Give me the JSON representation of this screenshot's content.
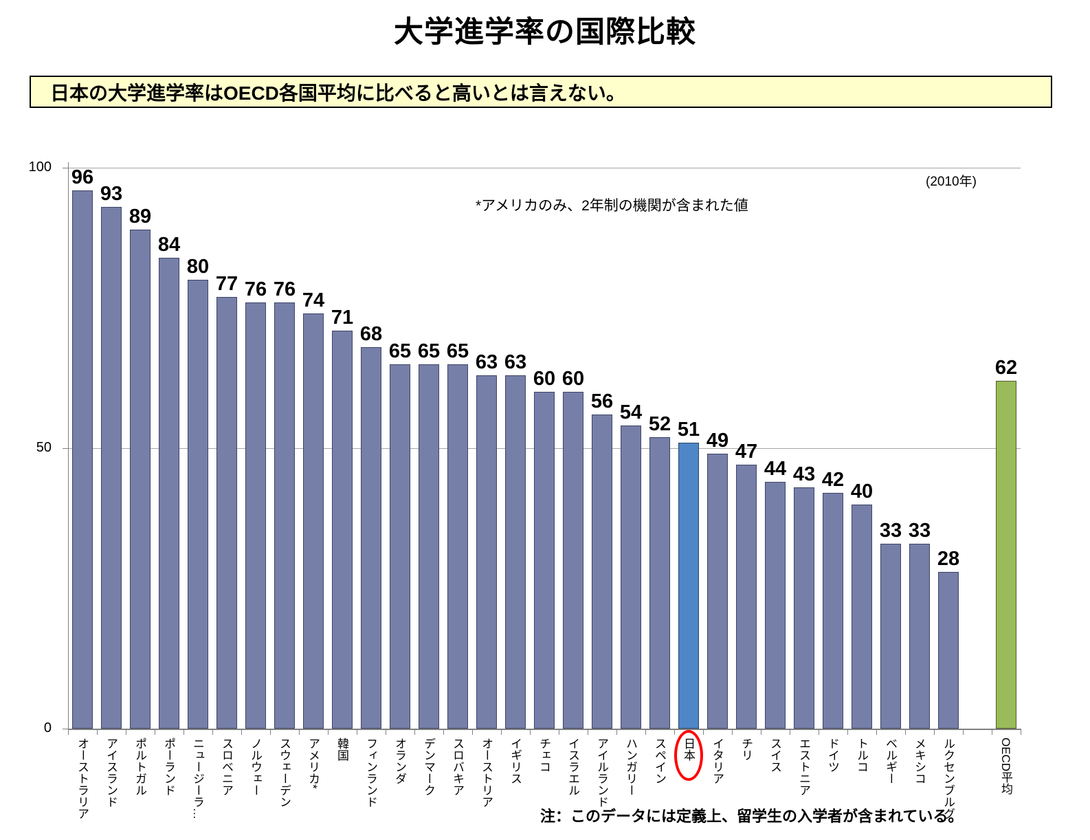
{
  "page": {
    "title": "大学進学率の国際比較"
  },
  "callout": {
    "text": "日本の大学進学率はOECD各国平均に比べると高いとは言えない。"
  },
  "annotations": {
    "year": "(2010年)",
    "america_note": "*アメリカのみ、2年制の機関が含まれた値",
    "footnote": "注：このデータには定義上、留学生の入学者が含まれている。"
  },
  "chart_data": {
    "type": "bar",
    "title": "大学進学率の国際比較",
    "xlabel": "",
    "ylabel": "",
    "ylim": [
      0,
      100
    ],
    "yticks": [
      100,
      50,
      0
    ],
    "grid": true,
    "legend": "none",
    "colors": {
      "country_fill": "#757FA8",
      "country_border": "#3E4466",
      "japan_fill": "#4E86C8",
      "japan_border": "#2E4466",
      "oecd_fill": "#9ABB59",
      "oecd_border": "#4F5A28",
      "circle": "#FF0000",
      "callout_bg": "#FFFFCC"
    },
    "bars": [
      {
        "id": "australia",
        "label": "オーストラリア",
        "value": 96,
        "group": "country"
      },
      {
        "id": "iceland",
        "label": "アイスランド",
        "value": 93,
        "group": "country"
      },
      {
        "id": "portugal",
        "label": "ポルトガル",
        "value": 89,
        "group": "country"
      },
      {
        "id": "poland",
        "label": "ポーランド",
        "value": 84,
        "group": "country"
      },
      {
        "id": "new-zealand",
        "label": "ニュージーラ…",
        "value": 80,
        "group": "country"
      },
      {
        "id": "slovenia",
        "label": "スロベニア",
        "value": 77,
        "group": "country"
      },
      {
        "id": "norway",
        "label": "ノルウェー",
        "value": 76,
        "group": "country"
      },
      {
        "id": "sweden",
        "label": "スウェーデン",
        "value": 76,
        "group": "country"
      },
      {
        "id": "usa",
        "label": "アメリカ*",
        "value": 74,
        "group": "country"
      },
      {
        "id": "korea",
        "label": "韓国",
        "value": 71,
        "group": "country"
      },
      {
        "id": "finland",
        "label": "フィンランド",
        "value": 68,
        "group": "country"
      },
      {
        "id": "netherlands",
        "label": "オランダ",
        "value": 65,
        "group": "country"
      },
      {
        "id": "denmark",
        "label": "デンマーク",
        "value": 65,
        "group": "country"
      },
      {
        "id": "slovakia",
        "label": "スロバキア",
        "value": 65,
        "group": "country"
      },
      {
        "id": "austria",
        "label": "オーストリア",
        "value": 63,
        "group": "country"
      },
      {
        "id": "uk",
        "label": "イギリス",
        "value": 63,
        "group": "country"
      },
      {
        "id": "czech",
        "label": "チェコ",
        "value": 60,
        "group": "country"
      },
      {
        "id": "israel",
        "label": "イスラエル",
        "value": 60,
        "group": "country"
      },
      {
        "id": "ireland",
        "label": "アイルランド",
        "value": 56,
        "group": "country"
      },
      {
        "id": "hungary",
        "label": "ハンガリー",
        "value": 54,
        "group": "country"
      },
      {
        "id": "spain",
        "label": "スペイン",
        "value": 52,
        "group": "country"
      },
      {
        "id": "japan",
        "label": "日本",
        "value": 51,
        "group": "japan",
        "circled": true
      },
      {
        "id": "italy",
        "label": "イタリア",
        "value": 49,
        "group": "country"
      },
      {
        "id": "chile",
        "label": "チリ",
        "value": 47,
        "group": "country"
      },
      {
        "id": "switzerland",
        "label": "スイス",
        "value": 44,
        "group": "country"
      },
      {
        "id": "estonia",
        "label": "エストニア",
        "value": 43,
        "group": "country"
      },
      {
        "id": "germany",
        "label": "ドイツ",
        "value": 42,
        "group": "country"
      },
      {
        "id": "turkey",
        "label": "トルコ",
        "value": 40,
        "group": "country"
      },
      {
        "id": "belgium",
        "label": "ベルギー",
        "value": 33,
        "group": "country"
      },
      {
        "id": "mexico",
        "label": "メキシコ",
        "value": 33,
        "group": "country"
      },
      {
        "id": "luxembourg",
        "label": "ルクセンブルグ",
        "value": 28,
        "group": "country"
      },
      {
        "id": "oecd-average",
        "label": "OECD平均",
        "value": 62,
        "group": "oecd",
        "gap_before": true
      }
    ]
  }
}
